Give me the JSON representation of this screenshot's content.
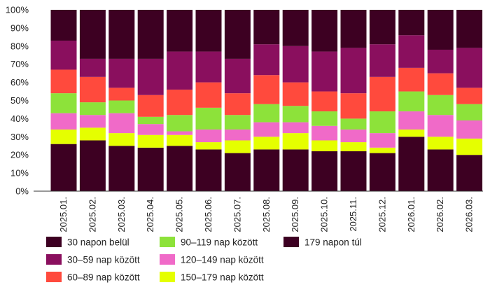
{
  "chart_data": {
    "type": "bar",
    "stacked": true,
    "categories": [
      "2025.01.",
      "2025.02.",
      "2025.03.",
      "2025.04.",
      "2025.05.",
      "2025.06.",
      "2025.07.",
      "2025.08.",
      "2025.09.",
      "2025.10.",
      "2025.11.",
      "2025.12.",
      "2026.01.",
      "2026.02.",
      "2026.03."
    ],
    "y_ticks": [
      "0%",
      "10%",
      "20%",
      "30%",
      "40%",
      "50%",
      "60%",
      "70%",
      "80%",
      "90%",
      "100%"
    ],
    "ylim": [
      0,
      100
    ],
    "grid": false,
    "legend_position": "bottom",
    "series": [
      {
        "name": "30 napon belül",
        "color": "#3d0022",
        "values": [
          26,
          28,
          25,
          24,
          25,
          23,
          21,
          23,
          23,
          22,
          22,
          21,
          30,
          23,
          20
        ]
      },
      {
        "name": "150–179 nap között",
        "color": "#e5ff00",
        "values": [
          8,
          7,
          7,
          7,
          6,
          4,
          7,
          7,
          9,
          6,
          5,
          3,
          4,
          7,
          9
        ]
      },
      {
        "name": "120–149 nap között",
        "color": "#f06ac8",
        "values": [
          9,
          7,
          11,
          6,
          2,
          7,
          6,
          8,
          6,
          8,
          7,
          8,
          10,
          12,
          10
        ]
      },
      {
        "name": "90–119 nap között",
        "color": "#8de23a",
        "values": [
          11,
          7,
          7,
          4,
          9,
          12,
          8,
          10,
          9,
          8,
          6,
          12,
          11,
          11,
          9
        ]
      },
      {
        "name": "60–89 nap között",
        "color": "#ff4a3d",
        "values": [
          13,
          14,
          7,
          12,
          14,
          14,
          12,
          16,
          13,
          11,
          14,
          19,
          13,
          12,
          9
        ]
      },
      {
        "name": "30–59 nap között",
        "color": "#8a0f5e",
        "values": [
          16,
          10,
          16,
          20,
          21,
          17,
          19,
          17,
          20,
          22,
          25,
          18,
          18,
          13,
          22
        ]
      },
      {
        "name": "179 napon túl",
        "color": "#3d0022",
        "values": [
          17,
          27,
          27,
          27,
          23,
          23,
          27,
          19,
          20,
          23,
          21,
          19,
          14,
          22,
          21
        ]
      }
    ],
    "legend": [
      {
        "label": "30 napon belül",
        "color": "#3d0022"
      },
      {
        "label": "90–119 nap között",
        "color": "#8de23a"
      },
      {
        "label": "179 napon túl",
        "color": "#3d0022"
      },
      {
        "label": "30–59 nap között",
        "color": "#8a0f5e"
      },
      {
        "label": "120–149 nap között",
        "color": "#f06ac8"
      },
      {
        "label": "60–89 nap között",
        "color": "#ff4a3d"
      },
      {
        "label": "150–179 nap között",
        "color": "#e5ff00"
      }
    ]
  }
}
